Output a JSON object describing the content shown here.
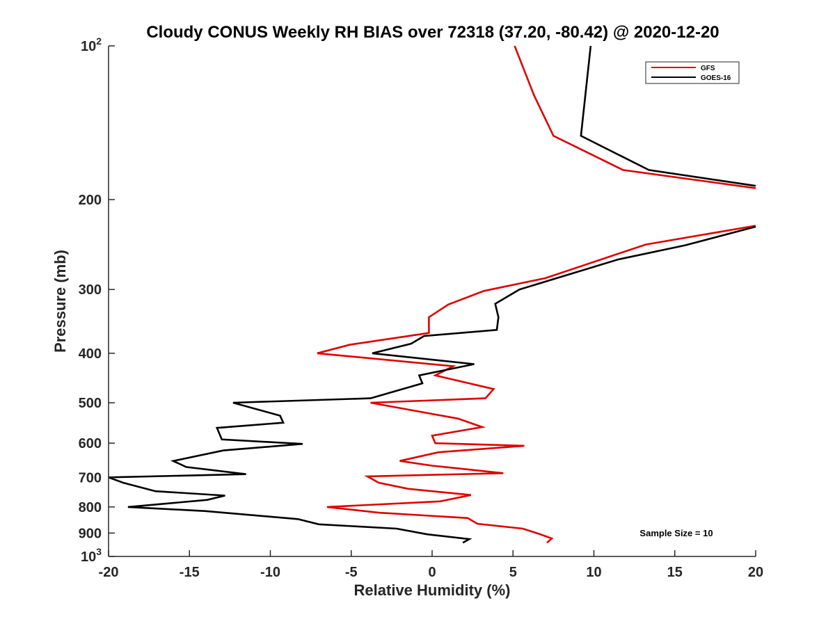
{
  "chart_data": {
    "type": "line",
    "title": "Cloudy CONUS Weekly RH BIAS over 72318 (37.20, -80.42) @ 2020-12-20",
    "xlabel": "Relative Humidity (%)",
    "ylabel": "Pressure (mb)",
    "xlim": [
      -20,
      20
    ],
    "ylim": [
      100,
      1000
    ],
    "yscale": "log",
    "y_reversed": true,
    "grid": false,
    "x_ticks": [
      -20,
      -15,
      -10,
      -5,
      0,
      5,
      10,
      15,
      20
    ],
    "x_tick_labels": [
      "-20",
      "-15",
      "-10",
      "-5",
      "0",
      "5",
      "10",
      "15",
      "20"
    ],
    "y_ticks": [
      {
        "value": 100,
        "base": "10",
        "exp": "2"
      },
      {
        "value": 200,
        "label": "200"
      },
      {
        "value": 300,
        "label": "300"
      },
      {
        "value": 400,
        "label": "400"
      },
      {
        "value": 500,
        "label": "500"
      },
      {
        "value": 600,
        "label": "600"
      },
      {
        "value": 700,
        "label": "700"
      },
      {
        "value": 800,
        "label": "800"
      },
      {
        "value": 900,
        "label": "900"
      },
      {
        "value": 1000,
        "base": "10",
        "exp": "3"
      }
    ],
    "legend": {
      "position": "top-right",
      "entries": [
        "GFS",
        "GOES-16"
      ]
    },
    "annotation": "Sample Size = 10",
    "series": [
      {
        "name": "GFS",
        "color": "#e00000",
        "points": [
          [
            5.1,
            100
          ],
          [
            6.3,
            125
          ],
          [
            7.5,
            150
          ],
          [
            11.8,
            175
          ],
          [
            20.0,
            190
          ],
          [
            null,
            null
          ],
          [
            20.0,
            225
          ],
          [
            13.2,
            245
          ],
          [
            7.0,
            285
          ],
          [
            3.2,
            302
          ],
          [
            1.0,
            321
          ],
          [
            -0.2,
            340
          ],
          [
            -0.2,
            365
          ],
          [
            -5.1,
            385
          ],
          [
            -7.1,
            400
          ],
          [
            1.3,
            424
          ],
          [
            0.2,
            442
          ],
          [
            3.8,
            470
          ],
          [
            3.3,
            490
          ],
          [
            -3.8,
            500
          ],
          [
            1.6,
            537
          ],
          [
            3.1,
            558
          ],
          [
            0.0,
            580
          ],
          [
            0.2,
            600
          ],
          [
            5.7,
            607
          ],
          [
            0.4,
            625
          ],
          [
            -2.0,
            650
          ],
          [
            0.0,
            664
          ],
          [
            4.4,
            687
          ],
          [
            -4.0,
            697
          ],
          [
            -3.3,
            717
          ],
          [
            -1.5,
            737
          ],
          [
            2.4,
            758
          ],
          [
            0.5,
            780
          ],
          [
            -6.5,
            800
          ],
          [
            -3.3,
            821
          ],
          [
            2.2,
            841
          ],
          [
            2.8,
            863
          ],
          [
            5.6,
            882
          ],
          [
            6.6,
            903
          ],
          [
            7.4,
            922
          ],
          [
            7.1,
            940
          ]
        ]
      },
      {
        "name": "GOES-16",
        "color": "#000000",
        "points": [
          [
            9.8,
            100
          ],
          [
            9.2,
            150
          ],
          [
            13.4,
            175
          ],
          [
            20.0,
            188
          ],
          [
            null,
            null
          ],
          [
            20.0,
            226
          ],
          [
            15.6,
            246
          ],
          [
            11.5,
            262
          ],
          [
            5.4,
            300
          ],
          [
            3.9,
            320
          ],
          [
            4.1,
            340
          ],
          [
            4.0,
            360
          ],
          [
            -0.5,
            370
          ],
          [
            -1.3,
            383
          ],
          [
            -3.7,
            400
          ],
          [
            2.6,
            420
          ],
          [
            -0.8,
            442
          ],
          [
            -0.6,
            458
          ],
          [
            -3.8,
            490
          ],
          [
            -12.3,
            500
          ],
          [
            -9.4,
            530
          ],
          [
            -9.2,
            547
          ],
          [
            -13.3,
            560
          ],
          [
            -13.0,
            590
          ],
          [
            -8.0,
            602
          ],
          [
            -12.9,
            620
          ],
          [
            -16.0,
            650
          ],
          [
            -15.2,
            668
          ],
          [
            -11.5,
            690
          ],
          [
            -20.0,
            700
          ],
          [
            -19.1,
            717
          ],
          [
            -17.1,
            745
          ],
          [
            -12.8,
            760
          ],
          [
            -13.9,
            775
          ],
          [
            -18.8,
            800
          ],
          [
            -14.0,
            815
          ],
          [
            -8.3,
            845
          ],
          [
            -7.0,
            865
          ],
          [
            -2.2,
            882
          ],
          [
            -0.3,
            905
          ],
          [
            2.3,
            925
          ],
          [
            1.9,
            940
          ]
        ]
      }
    ]
  }
}
